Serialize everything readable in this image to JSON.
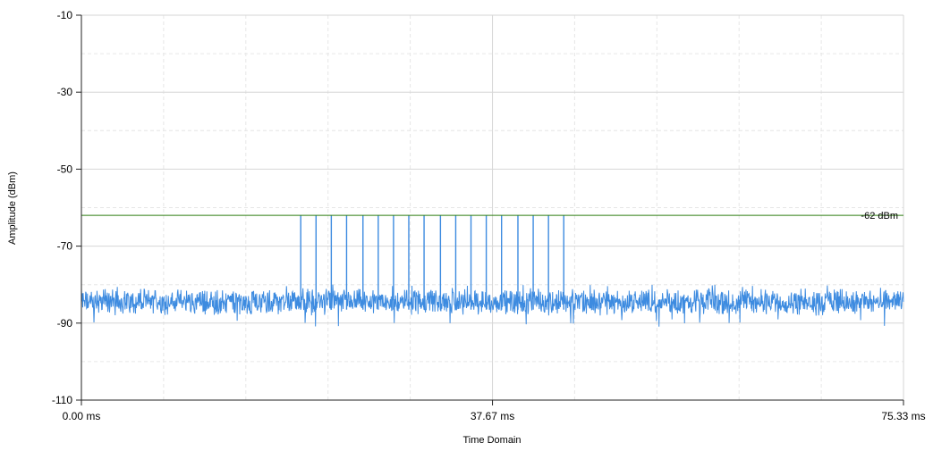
{
  "chart_data": {
    "type": "line",
    "xlabel": "Time Domain",
    "ylabel": "Amplitude (dBm)",
    "x_unit": "ms",
    "xlim": [
      0,
      75.33
    ],
    "ylim": [
      -110,
      -10
    ],
    "x_ticks": [
      {
        "value": 0,
        "label": "0.00 ms"
      },
      {
        "value": 37.67,
        "label": "37.67 ms"
      },
      {
        "value": 75.33,
        "label": "75.33 ms"
      }
    ],
    "y_ticks": [
      {
        "value": -10,
        "label": "-10"
      },
      {
        "value": -30,
        "label": "-30"
      },
      {
        "value": -50,
        "label": "-50"
      },
      {
        "value": -70,
        "label": "-70"
      },
      {
        "value": -90,
        "label": "-90"
      },
      {
        "value": -110,
        "label": "-110"
      }
    ],
    "grid": true,
    "threshold": {
      "value": -62,
      "label": "-62 dBm",
      "color": "#2e7d12"
    },
    "series": [
      {
        "color": "#3d8be0",
        "noise_floor": {
          "mean": -84.5,
          "min": -91,
          "max": -80
        },
        "pulses": [
          {
            "x": 20.1,
            "y": -62
          },
          {
            "x": 21.5,
            "y": -62
          },
          {
            "x": 22.9,
            "y": -62
          },
          {
            "x": 24.3,
            "y": -62
          },
          {
            "x": 25.8,
            "y": -62
          },
          {
            "x": 27.2,
            "y": -62
          },
          {
            "x": 28.6,
            "y": -62
          },
          {
            "x": 30.0,
            "y": -62
          },
          {
            "x": 31.4,
            "y": -62
          },
          {
            "x": 32.9,
            "y": -62
          },
          {
            "x": 34.3,
            "y": -62
          },
          {
            "x": 35.7,
            "y": -62
          },
          {
            "x": 37.1,
            "y": -62
          },
          {
            "x": 38.5,
            "y": -62
          },
          {
            "x": 40.0,
            "y": -62
          },
          {
            "x": 41.4,
            "y": -62
          },
          {
            "x": 42.8,
            "y": -62
          },
          {
            "x": 44.2,
            "y": -62
          }
        ]
      }
    ]
  }
}
